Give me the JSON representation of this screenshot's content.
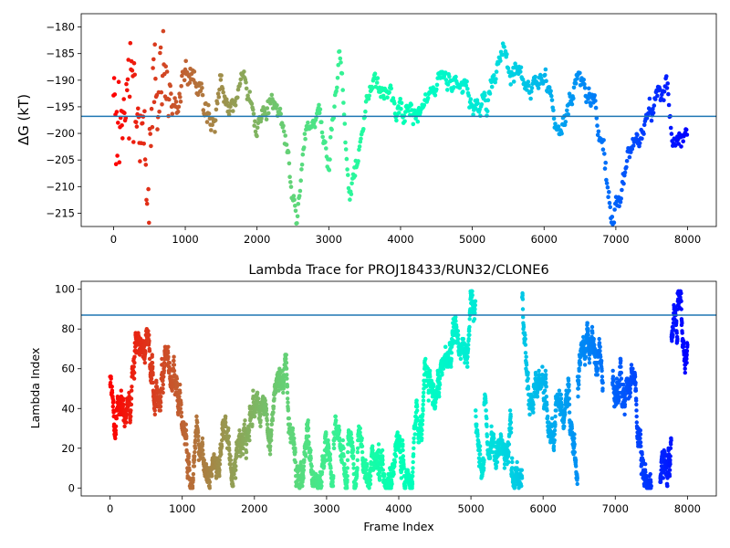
{
  "chart_data": [
    {
      "type": "scatter",
      "title": "",
      "ylabel": "ΔG (kT)",
      "xlabel": "",
      "xlim": [
        -450,
        8400
      ],
      "ylim": [
        -217.5,
        -177.5
      ],
      "xticks": [
        0,
        1000,
        2000,
        3000,
        4000,
        5000,
        6000,
        7000,
        8000
      ],
      "yticks": [
        -215,
        -210,
        -205,
        -200,
        -195,
        -190,
        -185,
        -180
      ],
      "colormap": "rainbow (red at frame 0 through violet at frame 8000)",
      "hline": {
        "y": -196.8,
        "color": "#1f77b4"
      },
      "trace_anchors": {
        "x": [
          0,
          120,
          300,
          500,
          700,
          900,
          1100,
          1300,
          1500,
          1650,
          1800,
          2000,
          2200,
          2400,
          2550,
          2700,
          2850,
          3000,
          3150,
          3300,
          3450,
          3600,
          3800,
          4000,
          4200,
          4500,
          4800,
          5000,
          5200,
          5400,
          5600,
          5800,
          6000,
          6200,
          6500,
          6700,
          6850,
          6950,
          7100,
          7300,
          7500,
          7700,
          7800,
          8000
        ],
        "y": [
          -190,
          -200,
          -192,
          -198,
          -188,
          -194,
          -188,
          -195,
          -190,
          -198,
          -188,
          -198,
          -192,
          -200,
          -216,
          -200,
          -196,
          -204,
          -183,
          -212,
          -200,
          -192,
          -192,
          -196,
          -197,
          -190,
          -190,
          -196,
          -195,
          -183,
          -188,
          -192,
          -190,
          -200,
          -188,
          -196,
          -205,
          -216,
          -210,
          -198,
          -197,
          -190,
          -202,
          -198
        ]
      }
    },
    {
      "type": "scatter",
      "title": "Lambda Trace for PROJ18433/RUN32/CLONE6",
      "xlabel": "Frame Index",
      "ylabel": "Lambda Index",
      "xlim": [
        -400,
        8400
      ],
      "ylim": [
        -4,
        104
      ],
      "xticks": [
        0,
        1000,
        2000,
        3000,
        4000,
        5000,
        6000,
        7000,
        8000
      ],
      "yticks": [
        0,
        20,
        40,
        60,
        80,
        100
      ],
      "colormap": "rainbow (red at frame 0 through violet at frame 8000)",
      "hline": {
        "y": 87,
        "color": "#1f77b4"
      },
      "lambda_range": [
        0,
        99
      ],
      "gaps_in_frames": [
        [
          6830,
          6960
        ],
        [
          7500,
          7620
        ]
      ]
    }
  ]
}
